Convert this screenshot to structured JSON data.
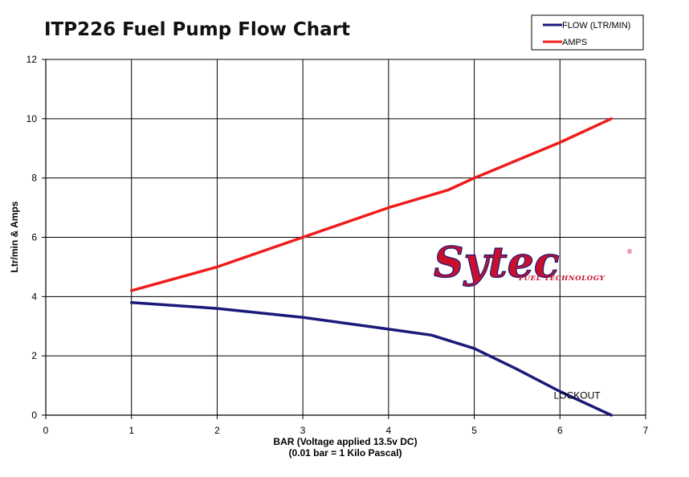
{
  "chart_data": {
    "type": "line",
    "title": "ITP226 Fuel Pump Flow Chart",
    "xlabel": "BAR (Voltage applied 13.5v DC)",
    "xlabel_sub": "(0.01 bar = 1 Kilo Pascal)",
    "ylabel": "Ltr/min & Amps",
    "xlim": [
      0,
      7
    ],
    "ylim": [
      0,
      12
    ],
    "x_ticks": [
      0,
      1,
      2,
      3,
      4,
      5,
      6,
      7
    ],
    "y_ticks": [
      0,
      2,
      4,
      6,
      8,
      10,
      12
    ],
    "grid": true,
    "legend_position": "top-right",
    "series": [
      {
        "name": "FLOW (LTR/MIN)",
        "color": "#1a1a7a",
        "points": [
          [
            1,
            3.8
          ],
          [
            2,
            3.6
          ],
          [
            3,
            3.3
          ],
          [
            4,
            2.9
          ],
          [
            4.5,
            2.7
          ],
          [
            5,
            2.25
          ],
          [
            5.5,
            1.55
          ],
          [
            6,
            0.8
          ],
          [
            6.6,
            0
          ]
        ]
      },
      {
        "name": "AMPS",
        "color": "#ee1c1c",
        "points": [
          [
            1,
            4.2
          ],
          [
            2,
            5.0
          ],
          [
            3,
            6.0
          ],
          [
            4,
            7.0
          ],
          [
            4.7,
            7.6
          ],
          [
            5,
            8.0
          ],
          [
            6,
            9.2
          ],
          [
            6.6,
            10.0
          ]
        ]
      }
    ],
    "annotations": [
      {
        "text": "LOCKOUT",
        "x": 6.2,
        "y": 0.55
      }
    ],
    "logo": {
      "text": "Sytec",
      "tagline": "FUEL TECHNOLOGY",
      "mark": "®",
      "color": "#c8102e",
      "outline": "#1a1a7a"
    }
  }
}
